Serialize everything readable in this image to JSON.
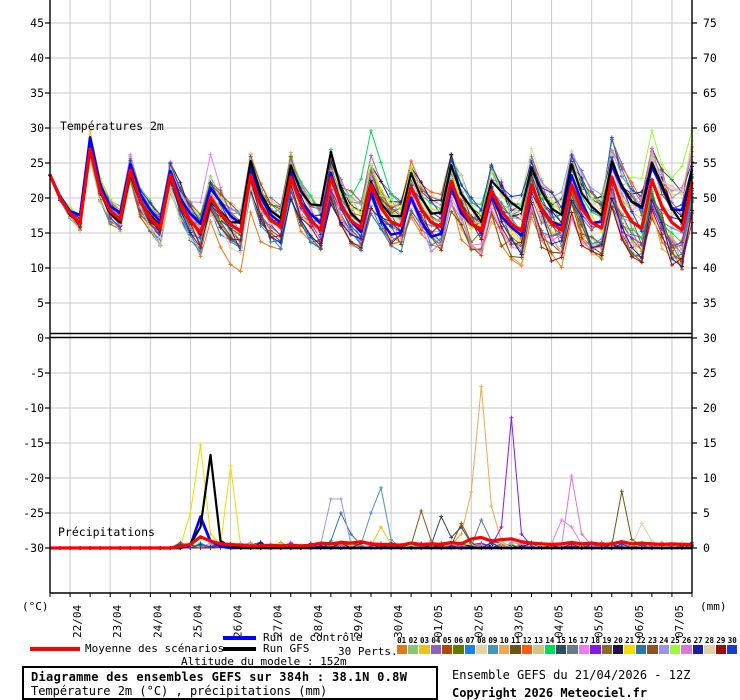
{
  "meta": {
    "box_title": "Diagramme des ensembles GEFS sur 384h : 38.1N 0.8W",
    "box_subtitle": "Température 2m (°C) , précipitations (mm)",
    "altitude": "Altitude du modele : 152m",
    "run_info": "Ensemble GEFS du 21/04/2026 - 12Z",
    "copyright": "Copyright 2026 Meteociel.fr"
  },
  "legend": {
    "mean_label": "Moyenne des scénarios",
    "control_label": "Run de contrôle",
    "gfs_label": "Run GFS",
    "perts_label": "30 Perts.",
    "mean_color": "#FF0000",
    "control_color": "#0000FF",
    "gfs_color": "#000000"
  },
  "axes": {
    "left_unit": "(°C)",
    "right_unit": "(mm)",
    "temp_label": "Températures 2m",
    "precip_label": "Précipitations",
    "left_ticks": [
      45,
      40,
      35,
      30,
      25,
      20,
      15,
      10,
      5,
      0,
      -5,
      -10,
      -15,
      -20,
      -25,
      -30
    ],
    "right_ticks": [
      75,
      70,
      65,
      60,
      55,
      50,
      45,
      40,
      35,
      30,
      25,
      20,
      15,
      10,
      5,
      0
    ],
    "date_labels": [
      "22/04",
      "23/04",
      "24/04",
      "25/04",
      "26/04",
      "27/04",
      "28/04",
      "29/04",
      "30/04",
      "01/05",
      "02/05",
      "03/05",
      "04/05",
      "05/05",
      "06/05",
      "07/05"
    ]
  },
  "members": {
    "numbers": [
      "01",
      "02",
      "03",
      "04",
      "05",
      "06",
      "07",
      "08",
      "09",
      "10",
      "11",
      "12",
      "13",
      "14",
      "15",
      "16",
      "17",
      "18",
      "19",
      "20",
      "21",
      "22",
      "23",
      "24",
      "25",
      "26",
      "27",
      "28",
      "29",
      "30"
    ],
    "colors": [
      "#E07820",
      "#84C87C",
      "#E8C328",
      "#9160BC",
      "#B04A00",
      "#5E7C00",
      "#1C80E8",
      "#E4D4A4",
      "#4C94B4",
      "#E8A858",
      "#6E5414",
      "#F85C14",
      "#D4C488",
      "#00D95C",
      "#2C4C5C",
      "#6A7A84",
      "#EC7CF4",
      "#8818E8",
      "#8A6A28",
      "#241048",
      "#F0DC00",
      "#2C74A4",
      "#8C5420",
      "#9C94E8",
      "#9CF83C",
      "#D878D8",
      "#1C1CA4",
      "#E0D0A8",
      "#9C0C0C",
      "#1C3CC8"
    ]
  },
  "chart_data": [
    {
      "type": "line",
      "title": "Températures 2m",
      "ylabel": "Température 2m (°C)",
      "ylim": [
        0,
        45
      ],
      "x_start": "21/04/2026 12Z",
      "step_hours": 6,
      "hours_total": 384,
      "mean": [
        23.3,
        20.0,
        17.8,
        16.4,
        27.0,
        21.0,
        18.2,
        16.9,
        24.0,
        19.5,
        17.2,
        15.7,
        23.3,
        19.2,
        16.8,
        15.0,
        20.1,
        17.8,
        16.2,
        15.2,
        23.3,
        19.0,
        16.8,
        15.9,
        23.0,
        19.2,
        16.8,
        15.4,
        22.9,
        19.0,
        16.8,
        15.7,
        21.9,
        18.6,
        16.6,
        16.0,
        21.6,
        18.4,
        16.5,
        15.9,
        22.4,
        18.6,
        16.4,
        15.4,
        21.1,
        18.2,
        16.3,
        15.3,
        21.9,
        18.4,
        16.4,
        15.4,
        21.9,
        18.5,
        16.5,
        15.7,
        23.0,
        19.0,
        16.6,
        15.7,
        22.6,
        18.8,
        16.5,
        15.4,
        22.3
      ],
      "ensemble_spread": [
        0.2,
        0.7,
        0.9,
        1.1,
        1.3,
        1.4,
        1.5,
        1.6,
        1.7,
        1.8,
        1.9,
        2.0,
        2.1,
        2.2,
        2.2,
        2.3,
        2.4,
        2.4,
        2.5,
        2.5,
        2.6,
        2.6,
        2.7,
        2.7,
        2.8,
        2.8,
        2.9,
        2.9,
        3.0,
        3.0,
        3.1,
        3.1,
        3.2,
        3.2,
        3.3,
        3.3,
        3.4,
        3.4,
        3.4,
        3.5,
        3.5,
        3.6,
        3.6,
        3.7,
        3.7,
        3.8,
        3.8,
        3.9,
        3.9,
        4.0,
        4.0,
        4.1,
        4.1,
        4.2,
        4.2,
        4.3,
        4.3,
        4.4,
        4.4,
        4.5,
        4.5,
        4.5,
        4.6,
        4.6,
        4.6
      ],
      "outliers": [
        {
          "member": 14,
          "hour": 192,
          "delta": 6.5,
          "width": 1.1
        },
        {
          "member": 25,
          "hour": 360,
          "delta": 6.0,
          "width": 1.0
        },
        {
          "member": 25,
          "hour": 384,
          "delta": 5.5,
          "width": 1.0
        },
        {
          "member": 17,
          "hour": 96,
          "delta": 4.5,
          "width": 1.2
        },
        {
          "member": 3,
          "hour": 24,
          "delta": 1.8,
          "width": 0.8
        },
        {
          "member": 10,
          "hour": 24,
          "delta": 1.5,
          "width": 0.7
        },
        {
          "member": 1,
          "hour": 108,
          "delta": -3.2,
          "width": 3.0
        }
      ],
      "control_bumps": [
        {
          "hour": 24,
          "delta": 1.4
        }
      ],
      "gfs_bumps": [
        {
          "hour": 96,
          "delta": -1.6
        },
        {
          "hour": 168,
          "delta": 2.7
        }
      ]
    },
    {
      "type": "line",
      "title": "Précipitations",
      "ylabel": "précipitations (mm)",
      "ylim": [
        0,
        25
      ],
      "x_start": "21/04/2026 12Z",
      "step_hours": 6,
      "hours_total": 384,
      "mean": [
        0,
        0,
        0,
        0,
        0,
        0,
        0,
        0,
        0,
        0,
        0,
        0,
        0,
        0.2,
        0.5,
        1.6,
        1.0,
        0.6,
        0.5,
        0.4,
        0.3,
        0.3,
        0.4,
        0.3,
        0.4,
        0.3,
        0.4,
        0.7,
        0.6,
        0.8,
        0.7,
        0.9,
        0.6,
        0.5,
        0.5,
        0.4,
        0.7,
        0.5,
        0.6,
        0.5,
        0.8,
        0.6,
        1.3,
        1.5,
        1.0,
        1.2,
        1.3,
        0.9,
        0.7,
        0.6,
        0.5,
        0.6,
        0.8,
        0.6,
        0.7,
        0.5,
        0.6,
        0.9,
        0.6,
        0.7,
        0.6,
        0.5,
        0.6,
        0.5,
        0.5
      ],
      "spikes": [
        {
          "member": 21,
          "points": [
            [
              78,
              0.3
            ],
            [
              84,
              5
            ],
            [
              90,
              14.7
            ],
            [
              96,
              2
            ],
            [
              102,
              0.3
            ]
          ]
        },
        {
          "member": 21,
          "points": [
            [
              102,
              0.5
            ],
            [
              108,
              11.7
            ],
            [
              114,
              0.4
            ]
          ]
        },
        {
          "member": "gfs",
          "points": [
            [
              84,
              0.5
            ],
            [
              90,
              3
            ],
            [
              96,
              13.3
            ],
            [
              102,
              1
            ],
            [
              108,
              0.2
            ]
          ]
        },
        {
          "member": "control",
          "points": [
            [
              84,
              0.4
            ],
            [
              90,
              4.5
            ],
            [
              96,
              1
            ],
            [
              102,
              0.2
            ]
          ]
        },
        {
          "member": 7,
          "points": [
            [
              84,
              0.3
            ],
            [
              90,
              4
            ],
            [
              96,
              0.6
            ]
          ]
        },
        {
          "member": 24,
          "points": [
            [
              162,
              0.4
            ],
            [
              168,
              7
            ],
            [
              174,
              7
            ],
            [
              180,
              0.6
            ]
          ]
        },
        {
          "member": 9,
          "points": [
            [
              186,
              0.5
            ],
            [
              192,
              5
            ],
            [
              198,
              8.6
            ],
            [
              204,
              1.2
            ]
          ]
        },
        {
          "member": 22,
          "points": [
            [
              168,
              1
            ],
            [
              174,
              5
            ],
            [
              180,
              2
            ],
            [
              186,
              0.4
            ]
          ]
        },
        {
          "member": 23,
          "points": [
            [
              216,
              0.4
            ],
            [
              222,
              5.3
            ],
            [
              228,
              1
            ]
          ]
        },
        {
          "member": 15,
          "points": [
            [
              228,
              0.4
            ],
            [
              234,
              4.5
            ],
            [
              240,
              1.5
            ],
            [
              246,
              3
            ],
            [
              252,
              0.6
            ]
          ]
        },
        {
          "member": 10,
          "points": [
            [
              240,
              0.5
            ],
            [
              246,
              2
            ],
            [
              252,
              8
            ],
            [
              258,
              23.1
            ],
            [
              264,
              6
            ],
            [
              270,
              1
            ]
          ]
        },
        {
          "member": 18,
          "points": [
            [
              264,
              0.3
            ],
            [
              270,
              3
            ],
            [
              276,
              18.6
            ],
            [
              282,
              2
            ],
            [
              288,
              0.3
            ]
          ]
        },
        {
          "member": 26,
          "points": [
            [
              306,
              0.4
            ],
            [
              312,
              10.3
            ],
            [
              318,
              2
            ],
            [
              324,
              0.4
            ]
          ]
        },
        {
          "member": 17,
          "points": [
            [
              300,
              0.3
            ],
            [
              306,
              4
            ],
            [
              312,
              3
            ],
            [
              318,
              0.5
            ]
          ]
        },
        {
          "member": 11,
          "points": [
            [
              336,
              0.4
            ],
            [
              342,
              8.1
            ],
            [
              348,
              1.2
            ]
          ]
        },
        {
          "member": 28,
          "points": [
            [
              348,
              0.3
            ],
            [
              354,
              3.5
            ],
            [
              360,
              1
            ]
          ]
        },
        {
          "member": 16,
          "points": [
            [
              252,
              0.3
            ],
            [
              258,
              4
            ],
            [
              264,
              1
            ]
          ]
        },
        {
          "member": 5,
          "points": [
            [
              240,
              0.4
            ],
            [
              246,
              3.5
            ],
            [
              252,
              0.8
            ]
          ]
        },
        {
          "member": 3,
          "points": [
            [
              192,
              0.3
            ],
            [
              198,
              3
            ],
            [
              204,
              0.5
            ]
          ]
        }
      ]
    }
  ]
}
